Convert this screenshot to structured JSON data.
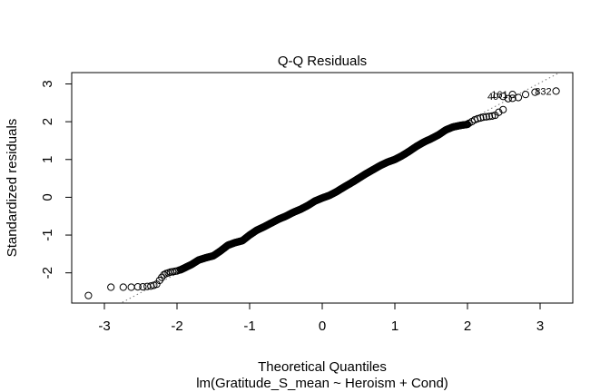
{
  "chart_data": {
    "type": "scatter",
    "title": "Q-Q Residuals",
    "xlabel": "Theoretical Quantiles",
    "subtitle": "lm(Gratitude_S_mean ~ Heroism + Cond)",
    "ylabel": "Standardized residuals",
    "xlim": [
      -3.45,
      3.45
    ],
    "ylim": [
      -2.8,
      3.3
    ],
    "x_ticks": [
      -3,
      -2,
      -1,
      0,
      1,
      2,
      3
    ],
    "x_tick_labels": [
      "-3",
      "-2",
      "-1",
      "0",
      "1",
      "2",
      "3"
    ],
    "y_ticks": [
      -2,
      -1,
      0,
      1,
      2,
      3
    ],
    "y_tick_labels": [
      "-2",
      "-1",
      "0",
      "1",
      "2",
      "3"
    ],
    "grid": false,
    "marker": "open-circle",
    "reference_line": {
      "style": "dotted",
      "slope": 1.01,
      "intercept": 0.0
    },
    "labeled_points": [
      {
        "label": "40",
        "x": 2.49,
        "y": 2.67
      },
      {
        "label": "161",
        "x": 2.62,
        "y": 2.72
      },
      {
        "label": "832",
        "x": 3.22,
        "y": 2.81
      }
    ],
    "series": [
      {
        "points_low_tail": [
          [
            -3.22,
            -2.6
          ],
          [
            -2.91,
            -2.38
          ],
          [
            -2.74,
            -2.38
          ],
          [
            -2.63,
            -2.38
          ],
          [
            -2.54,
            -2.37
          ],
          [
            -2.47,
            -2.37
          ],
          [
            -2.41,
            -2.36
          ],
          [
            -2.36,
            -2.35
          ],
          [
            -2.32,
            -2.33
          ],
          [
            -2.28,
            -2.3
          ],
          [
            -2.24,
            -2.2
          ],
          [
            -2.21,
            -2.12
          ],
          [
            -2.18,
            -2.05
          ],
          [
            -2.15,
            -2.02
          ],
          [
            -2.12,
            -2.0
          ],
          [
            -2.09,
            -1.98
          ],
          [
            -2.06,
            -1.97
          ],
          [
            -2.03,
            -1.96
          ],
          [
            -2.0,
            -1.95
          ],
          [
            -1.97,
            -1.93
          ]
        ],
        "points_high_tail": [
          [
            2.02,
            1.96
          ],
          [
            2.06,
            2.0
          ],
          [
            2.1,
            2.05
          ],
          [
            2.14,
            2.08
          ],
          [
            2.18,
            2.1
          ],
          [
            2.22,
            2.12
          ],
          [
            2.26,
            2.13
          ],
          [
            2.3,
            2.14
          ],
          [
            2.34,
            2.15
          ],
          [
            2.38,
            2.17
          ],
          [
            2.43,
            2.25
          ],
          [
            2.49,
            2.32
          ],
          [
            2.56,
            2.61
          ],
          [
            2.62,
            2.62
          ],
          [
            2.7,
            2.64
          ],
          [
            2.8,
            2.72
          ],
          [
            2.93,
            2.78
          ]
        ],
        "body_curve": [
          [
            -1.95,
            -1.92
          ],
          [
            -1.8,
            -1.78
          ],
          [
            -1.7,
            -1.66
          ],
          [
            -1.6,
            -1.6
          ],
          [
            -1.5,
            -1.55
          ],
          [
            -1.4,
            -1.42
          ],
          [
            -1.3,
            -1.27
          ],
          [
            -1.2,
            -1.2
          ],
          [
            -1.1,
            -1.15
          ],
          [
            -1.0,
            -1.0
          ],
          [
            -0.9,
            -0.87
          ],
          [
            -0.8,
            -0.78
          ],
          [
            -0.7,
            -0.68
          ],
          [
            -0.6,
            -0.58
          ],
          [
            -0.5,
            -0.5
          ],
          [
            -0.4,
            -0.4
          ],
          [
            -0.3,
            -0.32
          ],
          [
            -0.2,
            -0.22
          ],
          [
            -0.1,
            -0.1
          ],
          [
            0.0,
            -0.02
          ],
          [
            0.1,
            0.05
          ],
          [
            0.2,
            0.15
          ],
          [
            0.3,
            0.27
          ],
          [
            0.4,
            0.38
          ],
          [
            0.5,
            0.5
          ],
          [
            0.6,
            0.62
          ],
          [
            0.7,
            0.73
          ],
          [
            0.8,
            0.84
          ],
          [
            0.9,
            0.93
          ],
          [
            1.0,
            1.0
          ],
          [
            1.1,
            1.1
          ],
          [
            1.2,
            1.22
          ],
          [
            1.3,
            1.35
          ],
          [
            1.4,
            1.46
          ],
          [
            1.5,
            1.55
          ],
          [
            1.6,
            1.65
          ],
          [
            1.7,
            1.78
          ],
          [
            1.8,
            1.86
          ],
          [
            1.9,
            1.9
          ],
          [
            2.0,
            1.93
          ]
        ],
        "body_point_count": 400
      }
    ]
  }
}
